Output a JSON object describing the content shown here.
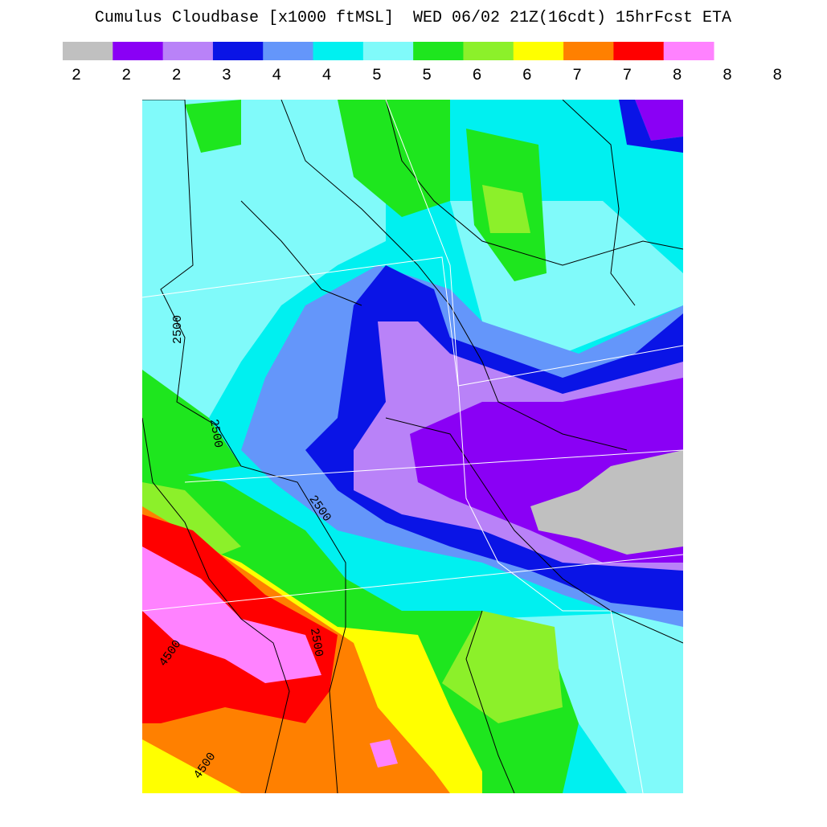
{
  "title": "Cumulus Cloudbase [x1000 ftMSL]  WED 06/02 21Z(16cdt) 15hrFcst ETA",
  "legend": {
    "colors": [
      "#c0c0c0",
      "#8a00f5",
      "#b982f8",
      "#0a14e6",
      "#6496fa",
      "#00f0f0",
      "#80fafa",
      "#1ee61e",
      "#8cf02a",
      "#ffff00",
      "#ff8000",
      "#ff0000",
      "#ff82ff"
    ],
    "labels": [
      "2",
      "2",
      "2",
      "3",
      "4",
      "4",
      "5",
      "5",
      "6",
      "6",
      "7",
      "7",
      "8",
      "8",
      "8"
    ]
  },
  "contour_labels": [
    "2500",
    "2500",
    "2500",
    "2500",
    "4500",
    "4500"
  ]
}
